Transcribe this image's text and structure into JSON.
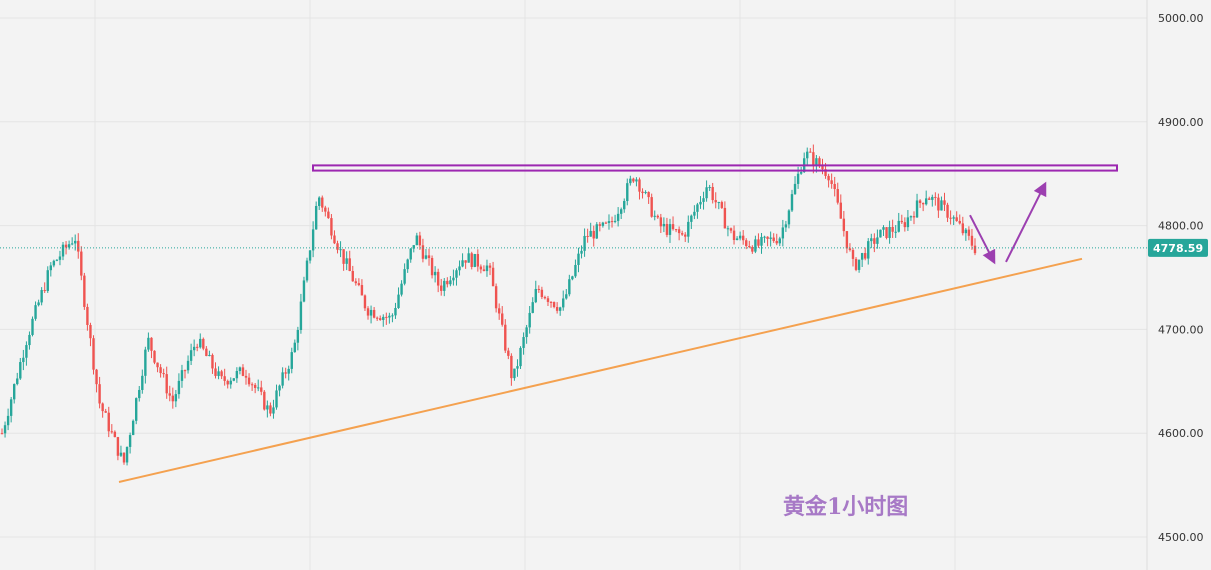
{
  "chart_data": {
    "type": "candlestick",
    "title": "黄金1小时图",
    "ylim": [
      4500,
      5000
    ],
    "y_ticks": [
      {
        "value": 5000,
        "label": "5000.00"
      },
      {
        "value": 4900,
        "label": "4900.00"
      },
      {
        "value": 4800,
        "label": "4800.00"
      },
      {
        "value": 4700,
        "label": "4700.00"
      },
      {
        "value": 4600,
        "label": "4600.00"
      },
      {
        "value": 4500,
        "label": "4500.00"
      }
    ],
    "last_price": {
      "value": 4778.59,
      "label": "4778.59"
    },
    "grid": true,
    "colors": {
      "up": "#26a69a",
      "down": "#ef5350",
      "background": "#f3f3f3",
      "grid": "#e4e4e4",
      "resistance": "#9c27b0",
      "trendline": "#f4a14f",
      "arrows": "#9c3fb0",
      "last_price_badge": "#26a69a",
      "watermark": "#a779c6"
    },
    "swing_path": [
      4600,
      4690,
      4760,
      4790,
      4630,
      4570,
      4690,
      4630,
      4690,
      4650,
      4660,
      4620,
      4680,
      4830,
      4770,
      4720,
      4710,
      4790,
      4740,
      4770,
      4760,
      4650,
      4740,
      4720,
      4790,
      4800,
      4850,
      4800,
      4790,
      4840,
      4790,
      4780,
      4790,
      4870,
      4850,
      4760,
      4790,
      4800,
      4830,
      4810,
      4778.59
    ],
    "resistance_zone": {
      "low": 4853,
      "high": 4858
    },
    "trendline": {
      "from": 4553,
      "to": 4768
    },
    "annotation_arrows": [
      {
        "from": 4810,
        "to": 4765
      },
      {
        "from": 4765,
        "to": 4840
      }
    ]
  }
}
